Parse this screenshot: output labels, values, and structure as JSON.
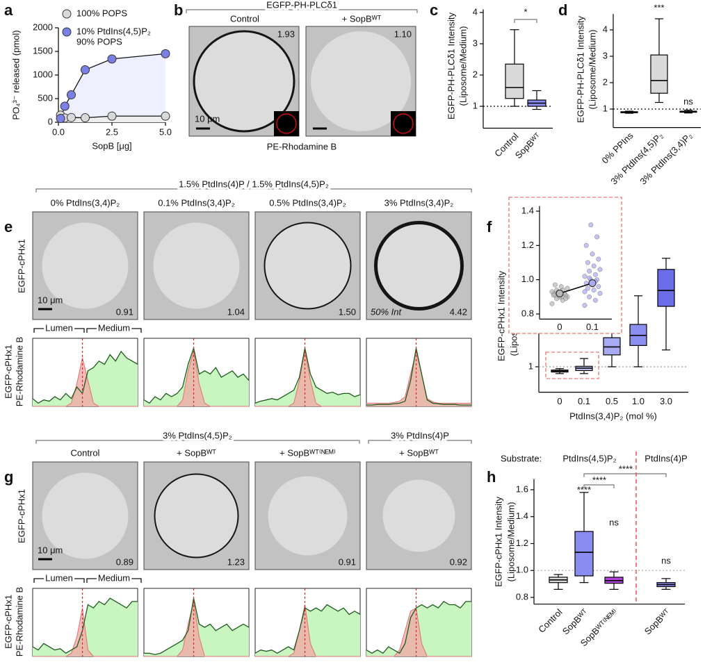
{
  "panel_letters": [
    "a",
    "b",
    "c",
    "d",
    "e",
    "f",
    "g",
    "h"
  ],
  "chart_data": [
    {
      "type": "line",
      "xlabel": "SopB [μg]",
      "ylabel": "PO₄³⁻ released (pmol)",
      "xlim": [
        0,
        5
      ],
      "ylim": [
        0,
        2000
      ],
      "xticks": [
        {
          "value": 0,
          "label": "0.0"
        },
        2.5,
        {
          "value": 5,
          "label": "5.0"
        }
      ],
      "yticks": [
        0,
        500,
        1000,
        1500,
        2000
      ],
      "series": [
        {
          "name": "100% POPS",
          "color": "#d9d9d9",
          "x": [
            0.1,
            0.3,
            0.6,
            1.25,
            2.5,
            5
          ],
          "values": [
            150,
            90,
            100,
            95,
            130,
            130
          ]
        },
        {
          "name": [
            "10% PtdIns(4,5)P₂",
            "90% POPS"
          ],
          "color": "#7b80e6",
          "x": [
            0.1,
            0.3,
            0.6,
            1.25,
            2.5,
            5
          ],
          "values": [
            80,
            340,
            580,
            1110,
            1340,
            1450
          ]
        }
      ]
    },
    {
      "type": "box",
      "ylabel": [
        "EGFP-PH-PLCδ1 Intensity",
        "(Liposome/Medium)"
      ],
      "categories": [
        "Control",
        "SopBᵂᵀ"
      ],
      "values": [
        [
          1.0,
          1.25,
          1.6,
          2.35,
          3.45
        ],
        [
          0.9,
          1.0,
          1.1,
          1.2,
          1.5
        ]
      ],
      "colors": [
        "#d9d9d9",
        "#8a8cf0"
      ],
      "ylim": [
        0.3,
        4.1
      ],
      "yticks": [
        1,
        2,
        3,
        4
      ],
      "reference_line": 1,
      "annotations": [
        "*"
      ]
    },
    {
      "type": "box",
      "ylabel": [
        "EGFP-PH-PLCδ1 Intensity",
        "(Liposome/Medium)"
      ],
      "categories": [
        "0% PPIns",
        "3% PtdIns(4,5)P₂",
        "3% PtdIns(3,4)P₂"
      ],
      "values": [
        [
          0.84,
          0.86,
          0.88,
          0.9,
          0.92
        ],
        [
          1.25,
          1.6,
          2.08,
          3.05,
          4.42
        ],
        [
          0.85,
          0.88,
          0.9,
          0.92,
          0.96
        ]
      ],
      "colors": [
        "#d9d9d9",
        "#d9d9d9",
        "#d9d9d9"
      ],
      "ylim": [
        0.3,
        4.6
      ],
      "yticks": [
        1,
        2,
        3,
        4
      ],
      "reference_line": 1,
      "annotations": [
        "***",
        "ns"
      ]
    },
    {
      "type": "box",
      "log_y": true,
      "ylabel": [
        "EGFP-cPHx1 Intensity",
        "(Liposome/Medium)"
      ],
      "xlabel": "PtdIns(3,4)P₂ (mol %)",
      "categories": [
        "0",
        "0.1",
        "0.5",
        "1.0",
        "3.0"
      ],
      "values": [
        [
          0.86,
          0.89,
          0.91,
          0.93,
          0.96
        ],
        [
          0.86,
          0.92,
          0.97,
          1.01,
          1.2
        ],
        [
          1.0,
          1.3,
          1.55,
          1.9,
          2.95
        ],
        [
          1.0,
          1.6,
          2.0,
          2.55,
          4.8
        ],
        [
          1.45,
          3.8,
          5.4,
          8.6,
          11
        ]
      ],
      "colors": [
        "#d9d9d9",
        "#c8c9f6",
        "#a9abf2",
        "#8c8ef0",
        "#6a6ce8"
      ],
      "ylim": [
        0.57,
        15
      ],
      "yticks": [
        1,
        10
      ],
      "reference_line": 1
    },
    {
      "type": "strip",
      "categories": [
        "0",
        "0.1"
      ],
      "ylim": [
        0.77,
        1.43
      ],
      "yticks": [
        0.8,
        {
          "value": 1,
          "label": "1.0"
        },
        1.2,
        1.4
      ],
      "series": [
        {
          "color": "#b8b8b8",
          "values": [
            0.86,
            0.88,
            0.89,
            0.9,
            0.9,
            0.91,
            0.91,
            0.92,
            0.92,
            0.92,
            0.93,
            0.93,
            0.94,
            0.94,
            0.95,
            0.96,
            0.97,
            0.89,
            0.9,
            0.91
          ]
        },
        {
          "color": "#a9abf0",
          "values": [
            0.85,
            0.88,
            0.9,
            0.92,
            0.94,
            0.95,
            0.96,
            0.97,
            0.98,
            1.0,
            1.0,
            1.02,
            1.03,
            1.05,
            1.06,
            1.08,
            1.1,
            1.12,
            1.15,
            1.2,
            1.25,
            1.32,
            0.93,
            0.99,
            1.01
          ]
        }
      ],
      "means": [
        0.92,
        0.98
      ]
    },
    {
      "type": "box",
      "header": [
        "Substrate:",
        "PtdIns(4,5)P₂",
        "PtdIns(4)P"
      ],
      "ylabel": [
        "EGFP-cPHx1 Intensity",
        "(Liposome/Medium)"
      ],
      "categories": [
        "Control",
        "SopBᵂᵀ",
        "SopBᵂᵀ⁽ᴺᴱᴹ⁾",
        "SopBᵂᵀ"
      ],
      "values": [
        [
          0.86,
          0.91,
          0.93,
          0.95,
          0.97
        ],
        [
          0.91,
          0.96,
          1.135,
          1.29,
          1.58
        ],
        [
          0.86,
          0.905,
          0.925,
          0.95,
          0.99
        ],
        [
          0.86,
          0.88,
          0.895,
          0.91,
          0.94
        ]
      ],
      "colors": [
        "#d9d9d9",
        "#8a8cf0",
        "#b545d8",
        "#8a8cf0"
      ],
      "ylim": [
        0.75,
        1.68
      ],
      "yticks": [
        0.8,
        {
          "value": 1,
          "label": "1.0"
        },
        1.2,
        1.4,
        1.6
      ],
      "reference_line": 1,
      "annotations": [
        "****",
        "****",
        "****",
        "ns",
        "ns"
      ]
    }
  ],
  "panel_b": {
    "title": "EGFP-PH-PLCδ1",
    "conditions": [
      "Control",
      "+ SopBᵂᵀ"
    ],
    "ratios": [
      "1.93",
      "1.10"
    ],
    "scale_bar": "10 μm",
    "channel": "PE-Rhodamine B"
  },
  "panel_e": {
    "header": "1.5% PtdIns(4)P / 1.5% PtdIns(4,5)P₂",
    "conditions": [
      "0% PtdIns(3,4)P₂",
      "0.1% PtdIns(3,4)P₂",
      "0.5% PtdIns(3,4)P₂",
      "3% PtdIns(3,4)P₂"
    ],
    "row_label": "EGFP-cPHx1",
    "ratios": [
      "0.91",
      "1.04",
      "1.50",
      "4.42"
    ],
    "scale_bar": "10 μm",
    "note": "50% Int",
    "regions": [
      "Lumen",
      "Medium"
    ],
    "profile_channels": [
      "EGFP-cPHx1",
      "PE-Rhodamine B"
    ],
    "profiles": [
      {
        "green": [
          0.12,
          0.05,
          0.1,
          0.08,
          0.15,
          0.1,
          0.2,
          0.12,
          0.3,
          0.2,
          0.55,
          0.6,
          0.7,
          0.65,
          0.8,
          0.7,
          0.85,
          0.75,
          0.7,
          0.65
        ],
        "red": [
          0,
          0,
          0,
          0,
          0,
          0,
          0,
          0.05,
          0.35,
          0.75,
          0.4,
          0.05,
          0,
          0,
          0,
          0,
          0,
          0,
          0,
          0
        ]
      },
      {
        "green": [
          0.1,
          0.05,
          0.15,
          0.1,
          0.2,
          0.15,
          0.2,
          0.3,
          0.65,
          0.9,
          0.5,
          0.55,
          0.5,
          0.6,
          0.45,
          0.5,
          0.55,
          0.45,
          0.5,
          0.4
        ],
        "red": [
          0,
          0,
          0,
          0,
          0,
          0,
          0,
          0.1,
          0.55,
          0.85,
          0.35,
          0.05,
          0,
          0,
          0,
          0,
          0,
          0,
          0,
          0
        ]
      },
      {
        "green": [
          0.05,
          0.08,
          0.1,
          0.12,
          0.1,
          0.15,
          0.2,
          0.25,
          0.45,
          0.9,
          0.5,
          0.3,
          0.25,
          0.2,
          0.22,
          0.18,
          0.2,
          0.2,
          0.15,
          0.18
        ],
        "red": [
          0,
          0,
          0,
          0,
          0,
          0,
          0,
          0.05,
          0.4,
          0.85,
          0.4,
          0.05,
          0,
          0,
          0,
          0,
          0,
          0,
          0,
          0
        ]
      },
      {
        "green": [
          0.02,
          0.02,
          0.03,
          0.03,
          0.03,
          0.04,
          0.05,
          0.08,
          0.4,
          0.9,
          0.5,
          0.1,
          0.05,
          0.04,
          0.03,
          0.03,
          0.03,
          0.02,
          0.02,
          0.02
        ],
        "red": [
          0.05,
          0.05,
          0.05,
          0.05,
          0.05,
          0.06,
          0.08,
          0.15,
          0.5,
          0.85,
          0.5,
          0.12,
          0.07,
          0.05,
          0.05,
          0.05,
          0.05,
          0.05,
          0.05,
          0.05
        ]
      }
    ]
  },
  "panel_g": {
    "headers": [
      "3% PtdIns(4,5)P₂",
      "3% PtdIns(4)P"
    ],
    "conditions": [
      "Control",
      "+ SopBᵂᵀ",
      "+ SopBᵂᵀ⁽ᴺᴱᴹ⁾",
      "+ SopBᵂᵀ"
    ],
    "row_label": "EGFP-cPHx1",
    "ratios": [
      "0.89",
      "1.23",
      "0.91",
      "0.92"
    ],
    "scale_bar": "10 μm",
    "regions": [
      "Lumen",
      "Medium"
    ],
    "profile_channels": [
      "EGFP-cPHx1",
      "PE-Rhodamine B"
    ],
    "profiles": [
      {
        "green": [
          0.15,
          0.1,
          0.2,
          0.15,
          0.1,
          0.12,
          0.05,
          0.1,
          0.15,
          0.4,
          0.8,
          0.75,
          0.85,
          0.8,
          0.9,
          0.85,
          0.8,
          0.75,
          0.85,
          0.85
        ],
        "red": [
          0,
          0,
          0,
          0,
          0,
          0,
          0,
          0.05,
          0.3,
          0.75,
          0.1,
          0,
          0,
          0,
          0,
          0,
          0,
          0,
          0,
          0
        ]
      },
      {
        "green": [
          0.05,
          0.05,
          0.03,
          0.05,
          0.1,
          0.15,
          0.2,
          0.25,
          0.4,
          0.9,
          0.5,
          0.45,
          0.5,
          0.4,
          0.45,
          0.5,
          0.4,
          0.45,
          0.5,
          0.45
        ],
        "red": [
          0,
          0,
          0,
          0,
          0,
          0,
          0,
          0.1,
          0.5,
          0.85,
          0.3,
          0,
          0,
          0,
          0,
          0,
          0,
          0,
          0,
          0
        ]
      },
      {
        "green": [
          0.05,
          0.1,
          0.08,
          0.1,
          0.05,
          0.1,
          0.15,
          0.1,
          0.4,
          0.75,
          0.7,
          0.75,
          0.7,
          0.8,
          0.75,
          0.7,
          0.75,
          0.65,
          0.7,
          0.65
        ],
        "red": [
          0,
          0,
          0,
          0,
          0,
          0,
          0,
          0.05,
          0.4,
          0.8,
          0.2,
          0,
          0,
          0,
          0,
          0,
          0,
          0,
          0,
          0
        ]
      },
      {
        "green": [
          0.1,
          0.05,
          0.1,
          0.05,
          0.15,
          0.1,
          0.05,
          0.2,
          0.6,
          0.75,
          0.8,
          0.75,
          0.8,
          0.75,
          0.85,
          0.8,
          0.8,
          0.75,
          0.85,
          0.85
        ],
        "red": [
          0,
          0,
          0,
          0,
          0,
          0,
          0.1,
          0.4,
          0.7,
          0.75,
          0.2,
          0,
          0,
          0,
          0,
          0,
          0,
          0,
          0,
          0
        ]
      }
    ]
  }
}
